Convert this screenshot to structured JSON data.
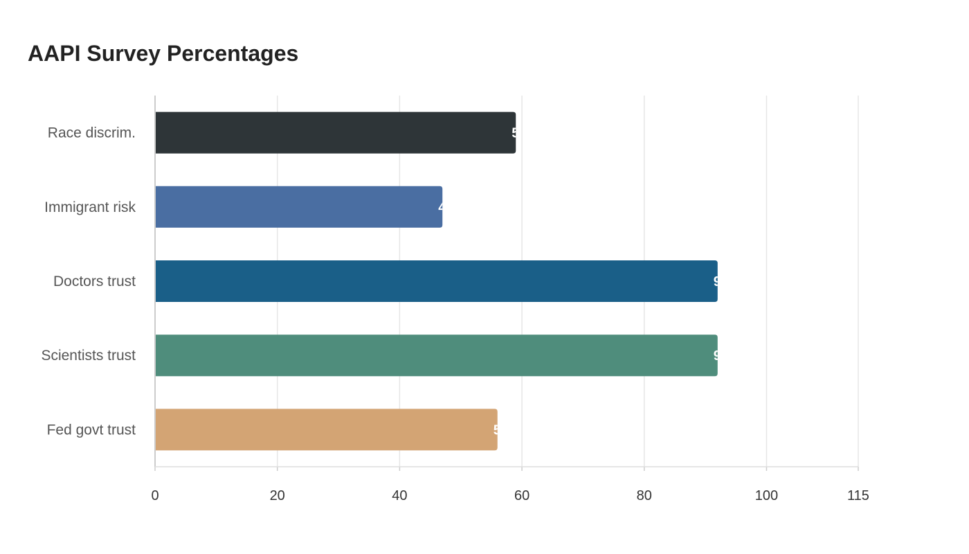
{
  "chart_data": {
    "type": "bar",
    "orientation": "horizontal",
    "title": "AAPI Survey Percentages",
    "categories": [
      "Race discrim.",
      "Immigrant risk",
      "Doctors trust",
      "Scientists trust",
      "Fed govt trust"
    ],
    "values": [
      59,
      47,
      92,
      92,
      56
    ],
    "colors": [
      "#2e3538",
      "#4a6ea2",
      "#1a5f88",
      "#4f8d7c",
      "#d3a474"
    ],
    "xlim": [
      0,
      115
    ],
    "xticks": [
      0,
      20,
      40,
      60,
      80,
      100,
      115
    ],
    "xlabel": "",
    "ylabel": "",
    "grid": true,
    "legend": "none"
  }
}
